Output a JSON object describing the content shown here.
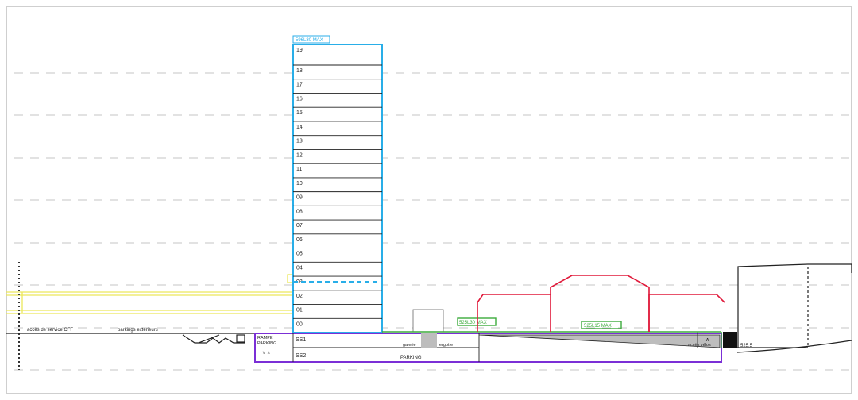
{
  "tower": {
    "height_label": "596L30 MAX",
    "floors": [
      "19",
      "18",
      "17",
      "16",
      "15",
      "14",
      "13",
      "12",
      "11",
      "10",
      "09",
      "08",
      "07",
      "06",
      "05",
      "04",
      "03",
      "02",
      "01",
      "00"
    ]
  },
  "basement": {
    "ss1": "SS1",
    "ss2": "SS2",
    "parking": "PARKING",
    "rampe": "RAMPE",
    "parking_small": "PARKING",
    "galerie": "galerie",
    "ergotte": "ergotte"
  },
  "labels": {
    "acces_cff": "accès de service CFF",
    "parkings_exterieurs": "parkings extérieurs",
    "max_left": "525L30 MAX",
    "max_right": "525L15 MAX",
    "acces_velos": "accès vélos",
    "ground_ref": "525.5"
  },
  "colors": {
    "tower": "#29aee8",
    "yellow": "#ece75a",
    "purple": "#7b2fd6",
    "red": "#e0193a",
    "green": "#3cab3c",
    "gray": "#bdbdbd"
  }
}
